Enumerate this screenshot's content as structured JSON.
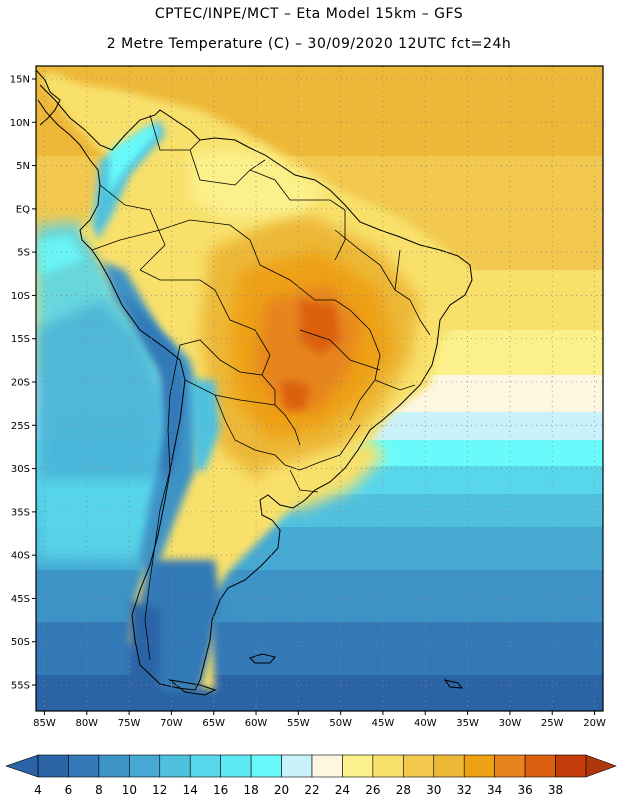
{
  "header": {
    "line1": "CPTEC/INPE/MCT –  Eta Model 15km – GFS",
    "line2": "2 Metre Temperature (C) – 30/09/2020 12UTC fct=24h"
  },
  "map": {
    "lon_range": [
      -86,
      -19
    ],
    "lat_range": [
      -58,
      16.5
    ],
    "lon_ticks": [
      {
        "v": -85,
        "label": "85W"
      },
      {
        "v": -80,
        "label": "80W"
      },
      {
        "v": -75,
        "label": "75W"
      },
      {
        "v": -70,
        "label": "70W"
      },
      {
        "v": -65,
        "label": "65W"
      },
      {
        "v": -60,
        "label": "60W"
      },
      {
        "v": -55,
        "label": "55W"
      },
      {
        "v": -50,
        "label": "50W"
      },
      {
        "v": -45,
        "label": "45W"
      },
      {
        "v": -40,
        "label": "40W"
      },
      {
        "v": -35,
        "label": "35W"
      },
      {
        "v": -30,
        "label": "30W"
      },
      {
        "v": -25,
        "label": "25W"
      },
      {
        "v": -20,
        "label": "20W"
      }
    ],
    "lat_ticks": [
      {
        "v": 15,
        "label": "15N"
      },
      {
        "v": 10,
        "label": "10N"
      },
      {
        "v": 5,
        "label": "5N"
      },
      {
        "v": 0,
        "label": "EQ"
      },
      {
        "v": -5,
        "label": "5S"
      },
      {
        "v": -10,
        "label": "10S"
      },
      {
        "v": -15,
        "label": "15S"
      },
      {
        "v": -20,
        "label": "20S"
      },
      {
        "v": -25,
        "label": "25S"
      },
      {
        "v": -30,
        "label": "30S"
      },
      {
        "v": -35,
        "label": "35S"
      },
      {
        "v": -40,
        "label": "40S"
      },
      {
        "v": -45,
        "label": "45S"
      },
      {
        "v": -50,
        "label": "50S"
      },
      {
        "v": -55,
        "label": "55S"
      }
    ],
    "grid": "dotted"
  },
  "colorbar": {
    "labels": [
      "4",
      "6",
      "8",
      "10",
      "12",
      "14",
      "16",
      "18",
      "20",
      "22",
      "24",
      "26",
      "28",
      "30",
      "32",
      "34",
      "36",
      "38"
    ],
    "colors": [
      "#2a63a6",
      "#3379b8",
      "#3d93c6",
      "#45a9d4",
      "#4fc1df",
      "#58d7ea",
      "#5fe9f4",
      "#69fbfb",
      "#c9f3fb",
      "#fdf7e2",
      "#fbf08a",
      "#f8e06a",
      "#f2c84e",
      "#edb838",
      "#eea112",
      "#e7841e",
      "#dc6010",
      "#c43c0a"
    ],
    "under_color": "#2a63a6",
    "over_color": "#b0370a"
  }
}
